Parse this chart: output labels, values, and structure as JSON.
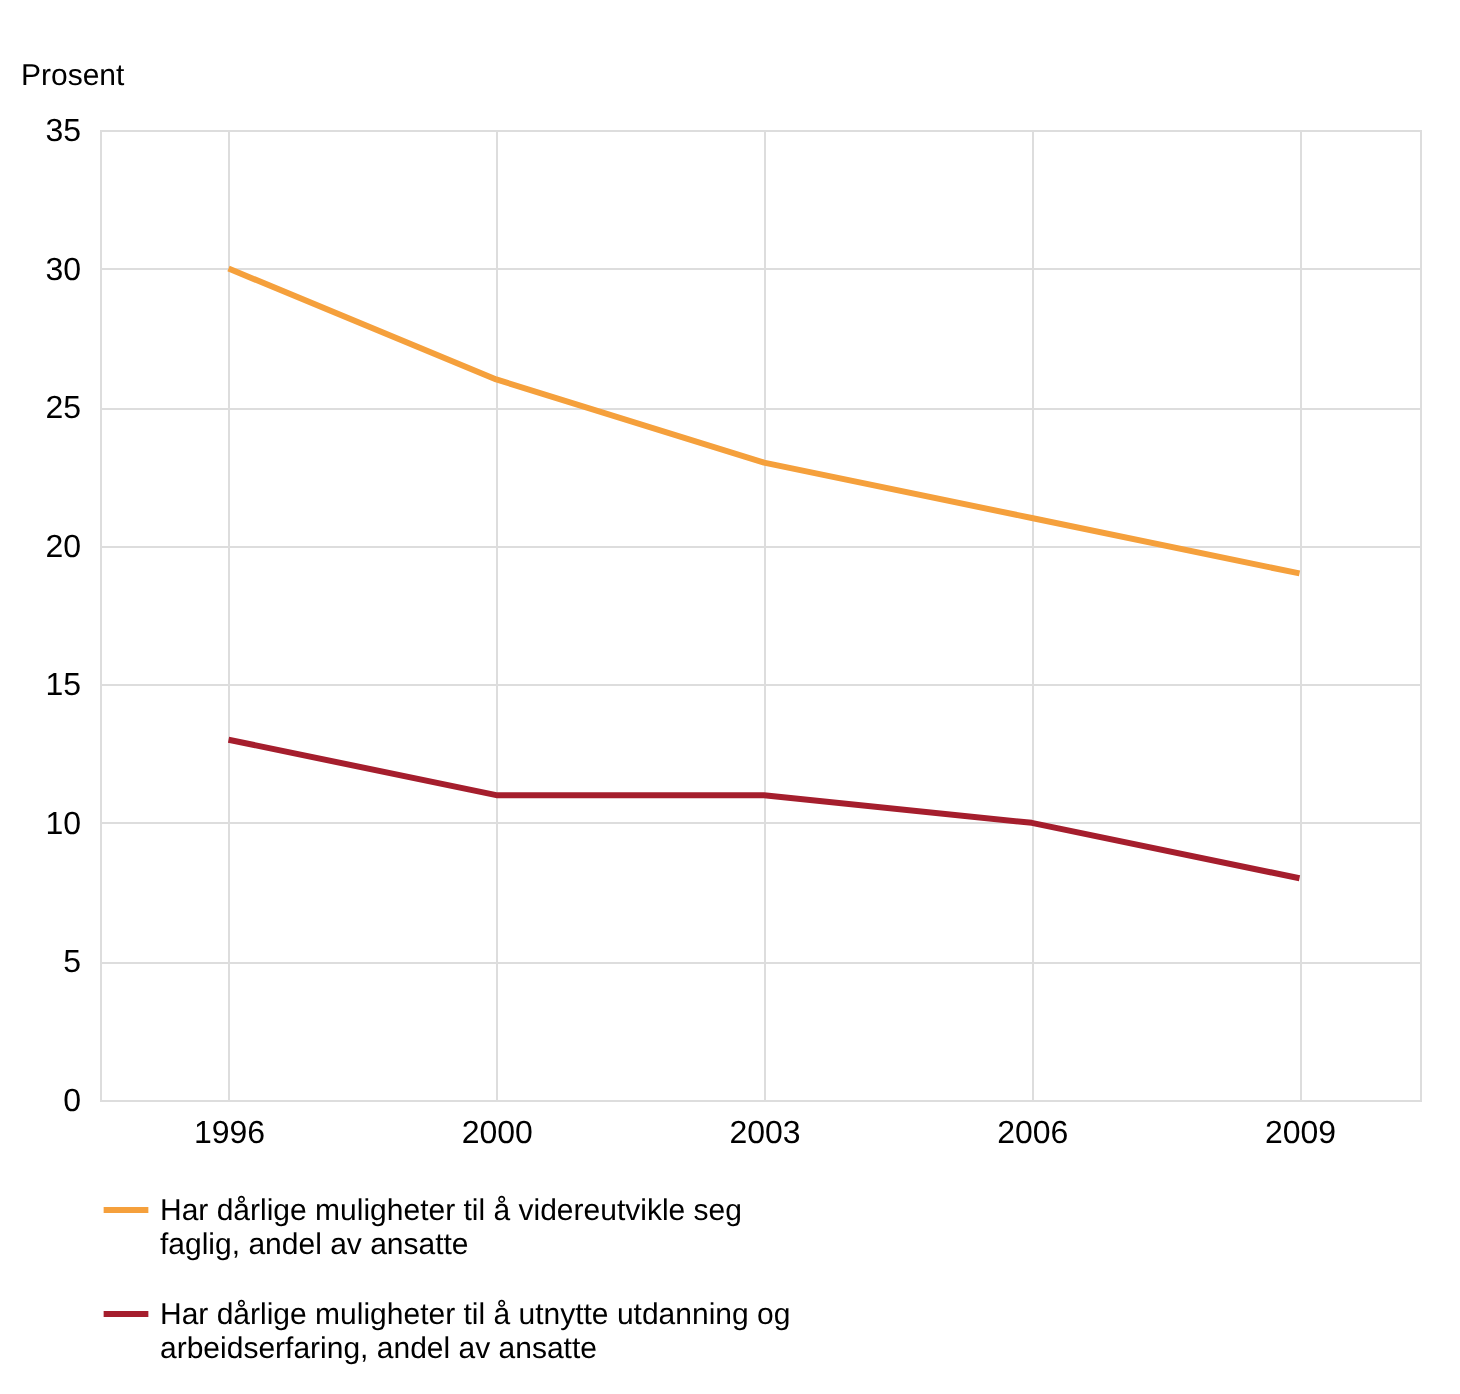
{
  "chart_data": {
    "type": "line",
    "ylabel": "Prosent",
    "categories": [
      "1996",
      "2000",
      "2003",
      "2006",
      "2009"
    ],
    "series": [
      {
        "name": "Har dårlige muligheter til å videreutvikle seg faglig, andel av ansatte",
        "color": "#f5a03c",
        "values": [
          30,
          26,
          23,
          21,
          19
        ]
      },
      {
        "name": "Har dårlige muligheter til å utnytte utdanning og arbeidserfaring, andel av ansatte",
        "color": "#a51e2d",
        "values": [
          13,
          11,
          11,
          10,
          8
        ]
      }
    ],
    "ylim": [
      0,
      35
    ],
    "yticks": [
      0,
      5,
      10,
      15,
      20,
      25,
      30,
      35
    ],
    "grid": true,
    "legend": "bottom",
    "marker": "none",
    "line_style": "solid"
  }
}
